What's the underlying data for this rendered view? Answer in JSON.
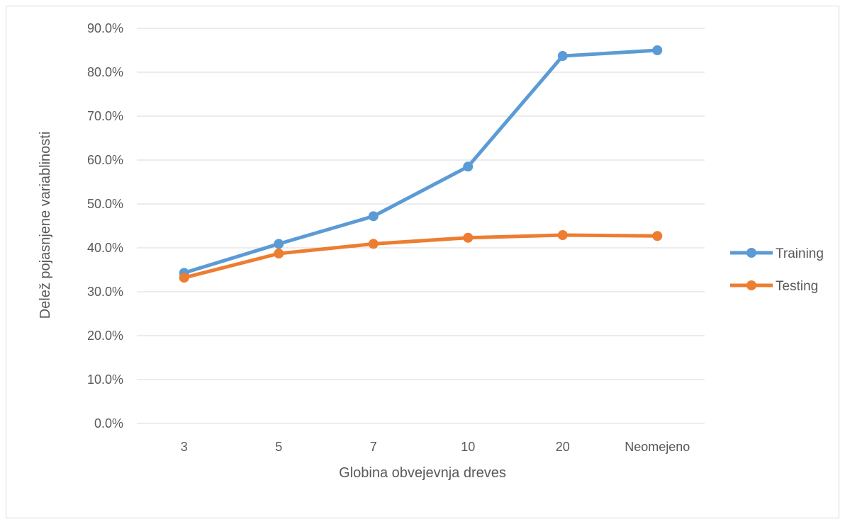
{
  "chart_data": {
    "type": "line",
    "title": "",
    "xlabel": "Globina obvejevnja dreves",
    "ylabel": "Delež pojasnjene variablinosti",
    "categories": [
      "3",
      "5",
      "7",
      "10",
      "20",
      "Neomejeno"
    ],
    "y_ticks": [
      "0.0%",
      "10.0%",
      "20.0%",
      "30.0%",
      "40.0%",
      "50.0%",
      "60.0%",
      "70.0%",
      "80.0%",
      "90.0%"
    ],
    "ylim": [
      0,
      90
    ],
    "grid": true,
    "legend_position": "right",
    "series": [
      {
        "name": "Training",
        "color": "#5b9bd5",
        "values": [
          34.3,
          40.9,
          47.2,
          58.5,
          83.7,
          85.0
        ]
      },
      {
        "name": "Testing",
        "color": "#ed7d31",
        "values": [
          33.2,
          38.7,
          40.9,
          42.3,
          42.9,
          42.7
        ]
      }
    ]
  }
}
